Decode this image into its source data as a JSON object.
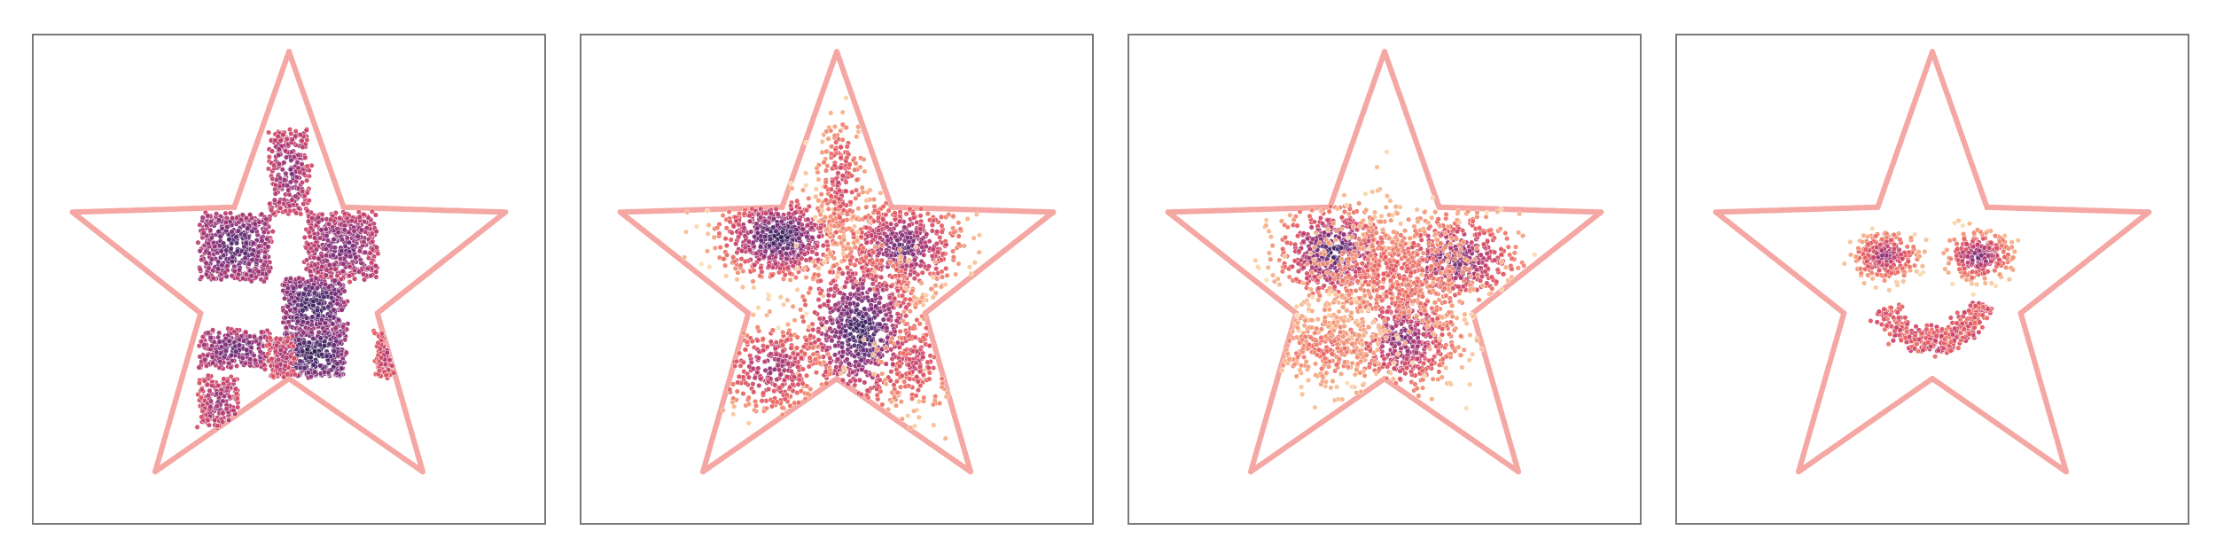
{
  "figure": {
    "panel_count": 4,
    "colors": {
      "boundary": "#f4a7a3",
      "frame": "#7a7a7a",
      "colormap": [
        "#fbe1b3",
        "#f4a07a",
        "#e85d5d",
        "#c43f6c",
        "#8a2f78",
        "#4e2a6e",
        "#2b1a4a"
      ]
    }
  },
  "chart_data": [
    {
      "type": "scatter",
      "description_tag": "checkerboard",
      "xlim": [
        -1,
        1
      ],
      "ylim": [
        -1,
        1
      ],
      "grid": false,
      "axes_visible": false,
      "boundary": "five-point-star",
      "blobs": [
        {
          "kind": "rect",
          "x": [
            -0.38,
            -0.08
          ],
          "y": [
            0.0,
            0.28
          ],
          "n": 520,
          "density": 0.85
        },
        {
          "kind": "rect",
          "x": [
            0.08,
            0.38
          ],
          "y": [
            0.0,
            0.28
          ],
          "n": 520,
          "density": 0.75
        },
        {
          "kind": "rect",
          "x": [
            -0.08,
            0.08
          ],
          "y": [
            0.28,
            0.64
          ],
          "n": 260,
          "density": 0.7
        },
        {
          "kind": "rect",
          "x": [
            -0.02,
            0.24
          ],
          "y": [
            -0.22,
            0.0
          ],
          "n": 420,
          "density": 0.95
        },
        {
          "kind": "rect",
          "x": [
            -0.02,
            0.24
          ],
          "y": [
            -0.42,
            -0.22
          ],
          "n": 380,
          "density": 1.0
        },
        {
          "kind": "rect",
          "x": [
            -0.38,
            -0.08
          ],
          "y": [
            -0.38,
            -0.22
          ],
          "n": 300,
          "density": 0.8
        },
        {
          "kind": "rect",
          "x": [
            -0.38,
            -0.22
          ],
          "y": [
            -0.64,
            -0.42
          ],
          "n": 200,
          "density": 0.65
        },
        {
          "kind": "rect",
          "x": [
            -0.08,
            0.02
          ],
          "y": [
            -0.42,
            -0.25
          ],
          "n": 120,
          "density": 0.6
        },
        {
          "kind": "rect",
          "x": [
            0.38,
            0.48
          ],
          "y": [
            -0.42,
            -0.22
          ],
          "n": 90,
          "density": 0.55
        }
      ]
    },
    {
      "type": "scatter",
      "description_tag": "checkerboard-diffused",
      "xlim": [
        -1,
        1
      ],
      "ylim": [
        -1,
        1
      ],
      "grid": false,
      "axes_visible": false,
      "boundary": "five-point-star",
      "blobs": [
        {
          "kind": "gauss",
          "x": -0.25,
          "y": 0.18,
          "sx": 0.13,
          "sy": 0.09,
          "n": 650,
          "density": 0.9
        },
        {
          "kind": "gauss",
          "x": 0.28,
          "y": 0.14,
          "sx": 0.13,
          "sy": 0.1,
          "n": 520,
          "density": 0.75
        },
        {
          "kind": "gauss",
          "x": 0.1,
          "y": -0.22,
          "sx": 0.13,
          "sy": 0.17,
          "n": 780,
          "density": 0.9
        },
        {
          "kind": "gauss",
          "x": 0.02,
          "y": 0.42,
          "sx": 0.05,
          "sy": 0.14,
          "n": 200,
          "density": 0.45
        },
        {
          "kind": "gauss",
          "x": -0.28,
          "y": -0.38,
          "sx": 0.12,
          "sy": 0.1,
          "n": 300,
          "density": 0.6
        },
        {
          "kind": "gauss",
          "x": 0.35,
          "y": -0.35,
          "sx": 0.08,
          "sy": 0.12,
          "n": 160,
          "density": 0.45
        }
      ]
    },
    {
      "type": "scatter",
      "description_tag": "mixed-blobs",
      "xlim": [
        -1,
        1
      ],
      "ylim": [
        -1,
        1
      ],
      "grid": false,
      "axes_visible": false,
      "boundary": "five-point-star",
      "blobs": [
        {
          "kind": "gauss",
          "x": -0.22,
          "y": 0.12,
          "sx": 0.12,
          "sy": 0.1,
          "n": 520,
          "density": 0.85
        },
        {
          "kind": "gauss",
          "x": 0.3,
          "y": 0.08,
          "sx": 0.14,
          "sy": 0.1,
          "n": 480,
          "density": 0.7
        },
        {
          "kind": "gauss",
          "x": 0.08,
          "y": -0.25,
          "sx": 0.12,
          "sy": 0.12,
          "n": 520,
          "density": 0.65
        },
        {
          "kind": "gauss",
          "x": 0.05,
          "y": 0.02,
          "sx": 0.2,
          "sy": 0.14,
          "n": 520,
          "density": 0.3
        },
        {
          "kind": "gauss",
          "x": -0.25,
          "y": -0.3,
          "sx": 0.12,
          "sy": 0.09,
          "n": 300,
          "density": 0.25
        }
      ]
    },
    {
      "type": "scatter",
      "description_tag": "smiley",
      "xlim": [
        -1,
        1
      ],
      "ylim": [
        -1,
        1
      ],
      "grid": false,
      "axes_visible": false,
      "boundary": "five-point-star",
      "blobs": [
        {
          "kind": "gauss",
          "x": -0.2,
          "y": 0.1,
          "sx": 0.07,
          "sy": 0.05,
          "n": 280,
          "density": 0.6
        },
        {
          "kind": "gauss",
          "x": 0.2,
          "y": 0.1,
          "sx": 0.07,
          "sy": 0.05,
          "n": 280,
          "density": 0.7
        },
        {
          "kind": "arc",
          "cx": 0.0,
          "cy": -0.05,
          "r": 0.22,
          "a0": 200,
          "a1": 345,
          "width": 0.03,
          "n": 380,
          "density": 0.5
        }
      ]
    }
  ]
}
